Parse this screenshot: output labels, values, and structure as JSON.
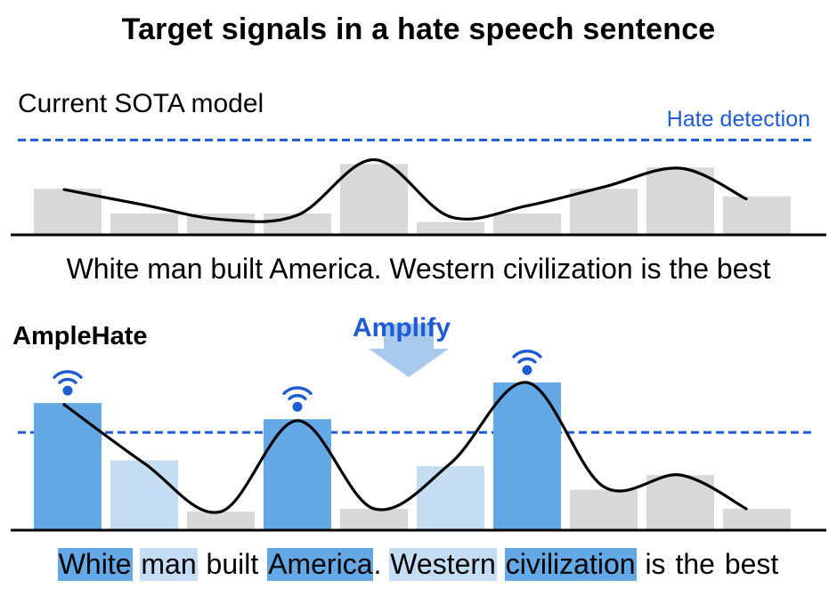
{
  "title": "Target signals in a hate speech sentence",
  "sota_panel": {
    "label": "Current SOTA model",
    "threshold_label": "Hate detection",
    "bar_values": [
      0.53,
      0.24,
      0.24,
      0.24,
      0.82,
      0.14,
      0.24,
      0.53,
      0.78,
      0.44
    ],
    "curve_values": [
      0.52,
      0.34,
      0.17,
      0.22,
      0.87,
      0.2,
      0.33,
      0.55,
      0.77,
      0.41
    ],
    "threshold": 1.1
  },
  "ample_panel": {
    "label": "AmpleHate",
    "amplify_label": "Amplify",
    "bar_values": [
      0.86,
      0.47,
      0.12,
      0.75,
      0.14,
      0.43,
      1.0,
      0.27,
      0.37,
      0.14
    ],
    "bar_levels": [
      "strong",
      "soft",
      "none",
      "strong",
      "none",
      "soft",
      "strong",
      "none",
      "none",
      "none"
    ],
    "curve_values": [
      0.85,
      0.45,
      0.12,
      0.74,
      0.14,
      0.45,
      1.0,
      0.29,
      0.37,
      0.14
    ],
    "threshold": 0.66,
    "signal_icon": "wifi-signal-icon"
  },
  "sentence_tokens": [
    {
      "text": "White",
      "level": "strong"
    },
    {
      "text": "man",
      "level": "soft"
    },
    {
      "text": "built",
      "level": "none"
    },
    {
      "text": "America",
      "level": "strong"
    },
    {
      "text": ".",
      "level": "none"
    },
    {
      "text": "Western",
      "level": "soft"
    },
    {
      "text": "civilization",
      "level": "strong"
    },
    {
      "text": "is",
      "level": "none"
    },
    {
      "text": "the",
      "level": "none"
    },
    {
      "text": "best",
      "level": "none"
    }
  ],
  "sentence_plain": "White man built America. Western civilization is the best",
  "colors": {
    "threshold": "#1f5bd1",
    "bar_gray": "#d9d9d9",
    "bar_strong": "#65a8e6",
    "bar_soft": "#c5ddf2",
    "arrow": "#a9c9ec",
    "curve": "#000000"
  }
}
